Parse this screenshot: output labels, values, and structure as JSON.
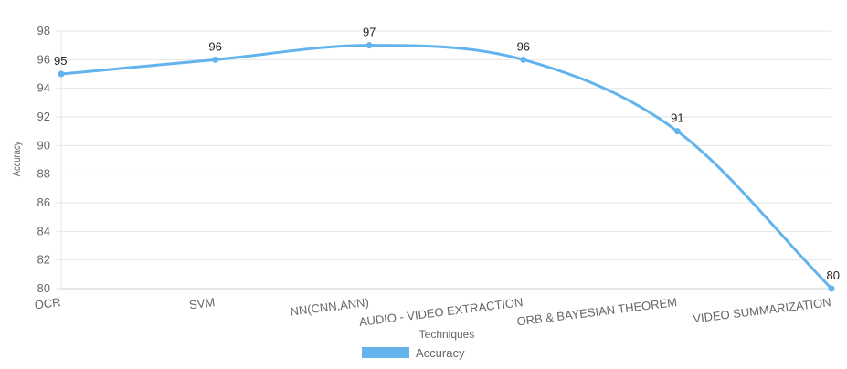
{
  "chart_data": {
    "type": "line",
    "categories": [
      "OCR",
      "SVM",
      "NN(CNN,ANN)",
      "AUDIO - VIDEO EXTRACTION",
      "ORB  & BAYESIAN THEOREM",
      "VIDEO SUMMARIZATION"
    ],
    "series": [
      {
        "name": "Accuracy",
        "values": [
          95,
          96,
          97,
          96,
          91,
          80
        ],
        "color": "#63b3ed"
      }
    ],
    "xlabel": "Techniques",
    "ylabel": "Accuracy",
    "ylim": [
      80,
      98
    ],
    "yticks": [
      80,
      82,
      84,
      86,
      88,
      90,
      92,
      94,
      96,
      98
    ],
    "grid": true,
    "legend": "bottom",
    "data_labels": true,
    "smooth": true
  }
}
